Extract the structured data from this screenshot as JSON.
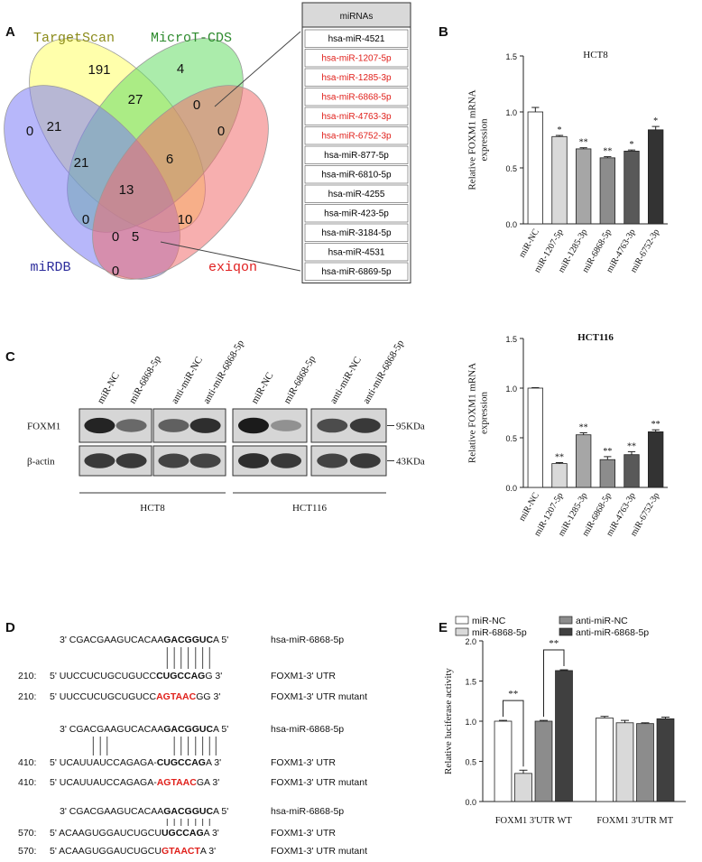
{
  "panel_labels": [
    "A",
    "B",
    "C",
    "D",
    "E"
  ],
  "venn": {
    "sets": [
      {
        "name": "TargetScan",
        "color": "#ffff66",
        "label_color": "#8b8b1a"
      },
      {
        "name": "MicroT-CDS",
        "color": "#66dd66",
        "label_color": "#2e8b2e"
      },
      {
        "name": "miRDB",
        "color": "#7b7bf5",
        "label_color": "#2b2b9b"
      },
      {
        "name": "exiqon",
        "color": "#f06e6e",
        "label_color": "#e02020"
      }
    ],
    "regions": [
      191,
      4,
      21,
      27,
      0,
      0,
      21,
      6,
      0,
      0,
      13,
      10,
      0,
      5,
      0
    ]
  },
  "table": {
    "header": "miRNAs",
    "rows": [
      {
        "text": "hsa-miR-4521",
        "color": "#000000"
      },
      {
        "text": "hsa-miR-1207-5p",
        "color": "#e0201b"
      },
      {
        "text": "hsa-miR-1285-3p",
        "color": "#e0201b"
      },
      {
        "text": "hsa-miR-6868-5p",
        "color": "#e0201b"
      },
      {
        "text": "hsa-miR-4763-3p",
        "color": "#e0201b"
      },
      {
        "text": "hsa-miR-6752-3p",
        "color": "#e0201b"
      },
      {
        "text": "hsa-miR-877-5p",
        "color": "#000000"
      },
      {
        "text": "hsa-miR-6810-5p",
        "color": "#000000"
      },
      {
        "text": "hsa-miR-4255",
        "color": "#000000"
      },
      {
        "text": "hsa-miR-423-5p",
        "color": "#000000"
      },
      {
        "text": "hsa-miR-3184-5p",
        "color": "#000000"
      },
      {
        "text": "hsa-miR-4531",
        "color": "#000000"
      },
      {
        "text": "hsa-miR-6869-5p",
        "color": "#000000"
      }
    ]
  },
  "chart_data": [
    {
      "type": "bar",
      "title": "HCT8",
      "title_weight": "normal",
      "y_label": [
        "Relative FOXM1 mRNA",
        "expression"
      ],
      "categories": [
        "miR-NC",
        "miR-1207-5p",
        "miR-1285-3p",
        "miR-6868-5p",
        "miR-4763-3p",
        "miR-6752-3p"
      ],
      "values": [
        1.0,
        0.78,
        0.67,
        0.59,
        0.65,
        0.84
      ],
      "errors": [
        0.04,
        0.01,
        0.01,
        0.01,
        0.01,
        0.03
      ],
      "significance": [
        null,
        "*",
        "**",
        "**",
        "*",
        "*"
      ],
      "colors": [
        "#ffffff",
        "#d9d9d9",
        "#a6a6a6",
        "#8c8c8c",
        "#595959",
        "#333333"
      ],
      "ylim": [
        0,
        1.5
      ],
      "yticks": [
        {
          "value": 0,
          "label": "0.0"
        },
        {
          "value": 0.5,
          "label": "0.5"
        },
        {
          "value": 1,
          "label": "1.0"
        },
        {
          "value": 1.5,
          "label": "1.5"
        }
      ]
    },
    {
      "type": "bar",
      "title": "HCT116",
      "title_weight": "bold",
      "y_label": [
        "Relative FOXM1 mRNA",
        "expression"
      ],
      "categories": [
        "miR-NC",
        "miR-1207-5p",
        "miR-1285-3p",
        "miR-6868-5p",
        "miR-4763-3p",
        "miR-6752-3p"
      ],
      "values": [
        1.0,
        0.24,
        0.53,
        0.28,
        0.33,
        0.56
      ],
      "errors": [
        0.005,
        0.01,
        0.02,
        0.03,
        0.03,
        0.02
      ],
      "significance": [
        null,
        "**",
        "**",
        "**",
        "**",
        "**"
      ],
      "colors": [
        "#ffffff",
        "#d9d9d9",
        "#a6a6a6",
        "#8c8c8c",
        "#595959",
        "#333333"
      ],
      "ylim": [
        0,
        1.5
      ],
      "yticks": [
        {
          "value": 0,
          "label": "0.0"
        },
        {
          "value": 0.5,
          "label": "0.5"
        },
        {
          "value": 1,
          "label": "1.0"
        },
        {
          "value": 1.5,
          "label": "1.5"
        }
      ]
    },
    {
      "type": "grouped_bar",
      "y_label": [
        "Relative luciferase activity"
      ],
      "categories": [
        "FOXM1 3'UTR  WT",
        "FOXM1 3'UTR  MT"
      ],
      "series": [
        {
          "name": "miR-NC",
          "color": "#ffffff",
          "values": [
            1.0,
            1.04
          ],
          "errors": [
            0.01,
            0.02
          ]
        },
        {
          "name": "miR-6868-5p",
          "color": "#d9d9d9",
          "values": [
            0.35,
            0.98
          ],
          "errors": [
            0.04,
            0.03
          ]
        },
        {
          "name": "anti-miR-NC",
          "color": "#8c8c8c",
          "values": [
            1.0,
            0.97
          ],
          "errors": [
            0.01,
            0.01
          ]
        },
        {
          "name": "anti-miR-6868-5p",
          "color": "#404040",
          "values": [
            1.63,
            1.03
          ],
          "errors": [
            0.01,
            0.02
          ]
        }
      ],
      "comparisons": [
        {
          "label": "**",
          "category": 0,
          "series": [
            0,
            1
          ]
        },
        {
          "label": "**",
          "category": 0,
          "series": [
            2,
            3
          ]
        }
      ],
      "legend": "top",
      "ylim": [
        0,
        2
      ],
      "yticks": [
        {
          "value": 0,
          "label": "0.0"
        },
        {
          "value": 0.5,
          "label": "0.5"
        },
        {
          "value": 1,
          "label": "1.0"
        },
        {
          "value": 1.5,
          "label": "1.5"
        },
        {
          "value": 2,
          "label": "2.0"
        }
      ]
    }
  ],
  "western_blot": {
    "groups": [
      {
        "name": "HCT8",
        "lanes": [
          "miR-NC",
          "miR-6868-5p",
          "anti-miR-NC",
          "anti-miR-6868-5p"
        ]
      },
      {
        "name": "HCT116",
        "lanes": [
          "miR-NC",
          "miR-6868-5p",
          "anti-miR-NC",
          "anti-miR-6868-5p"
        ]
      }
    ],
    "rows": [
      {
        "label": "FOXM1",
        "size": "95KDa"
      },
      {
        "label": "β-actin",
        "size": "43KDa"
      }
    ]
  },
  "sequences": {
    "blocks": [
      {
        "mirna": {
          "segments": [
            {
              "text": "3' CGACGAAGUCACAA",
              "style": "normal"
            },
            {
              "text": "GACGGUC",
              "style": "bold"
            },
            {
              "text": "A 5'",
              "style": "normal"
            }
          ],
          "label": "hsa-miR-6868-5p"
        },
        "utr": {
          "position": "210:",
          "segments": [
            {
              "text": "5' UUCCUCUGCUGUCC",
              "style": "normal"
            },
            {
              "text": "CUGCCAG",
              "style": "bold"
            },
            {
              "text": "G 3'",
              "style": "normal"
            }
          ],
          "label": "FOXM1-3' UTR"
        },
        "mutant": {
          "position": "210:",
          "segments": [
            {
              "text": "5' UUCCUCUGCUGUCC",
              "style": "normal"
            },
            {
              "text": "AGTAAC",
              "style": "red"
            },
            {
              "text": "GG 3'",
              "style": "normal"
            }
          ],
          "label": "FOXM1-3' UTR mutant"
        }
      },
      {
        "mirna": {
          "segments": [
            {
              "text": "3'  CGACGAAGUCACAA",
              "style": "normal"
            },
            {
              "text": "GACGGUC",
              "style": "bold"
            },
            {
              "text": "A 5'",
              "style": "normal"
            }
          ],
          "label": "hsa-miR-6868-5p"
        },
        "utr": {
          "position": "410:",
          "segments": [
            {
              "text": "5' UCAUUAUCCAGAGA-",
              "style": "normal"
            },
            {
              "text": "CUGCCAG",
              "style": "bold"
            },
            {
              "text": "A 3'",
              "style": "normal"
            }
          ],
          "label": "FOXM1-3' UTR"
        },
        "mutant": {
          "position": "410:",
          "segments": [
            {
              "text": "5' UCAUUAUCCAGAGA-",
              "style": "normal"
            },
            {
              "text": "AGTAAC",
              "style": "red"
            },
            {
              "text": "GA 3'",
              "style": "normal"
            }
          ],
          "label": "FOXM1-3' UTR mutant"
        }
      },
      {
        "mirna": {
          "segments": [
            {
              "text": "3' CGACGAAGUCACAA",
              "style": "normal"
            },
            {
              "text": "GACGGUC",
              "style": "bold"
            },
            {
              "text": "A 5'",
              "style": "normal"
            }
          ],
          "label": "hsa-miR-6868-5p"
        },
        "utr": {
          "position": "570:",
          "segments": [
            {
              "text": "5' ACAAGUGGAUCUGCU",
              "style": "normal"
            },
            {
              "text": "UGCCAG",
              "style": "bold"
            },
            {
              "text": "A 3'",
              "style": "normal"
            }
          ],
          "label": "FOXM1-3' UTR"
        },
        "mutant": {
          "position": "570:",
          "segments": [
            {
              "text": "5' ACAAGUGGAUCUGCU",
              "style": "normal"
            },
            {
              "text": "GTAACT",
              "style": "red"
            },
            {
              "text": "A 3'",
              "style": "normal"
            }
          ],
          "label": "FOXM1-3' UTR mutant"
        }
      }
    ]
  }
}
